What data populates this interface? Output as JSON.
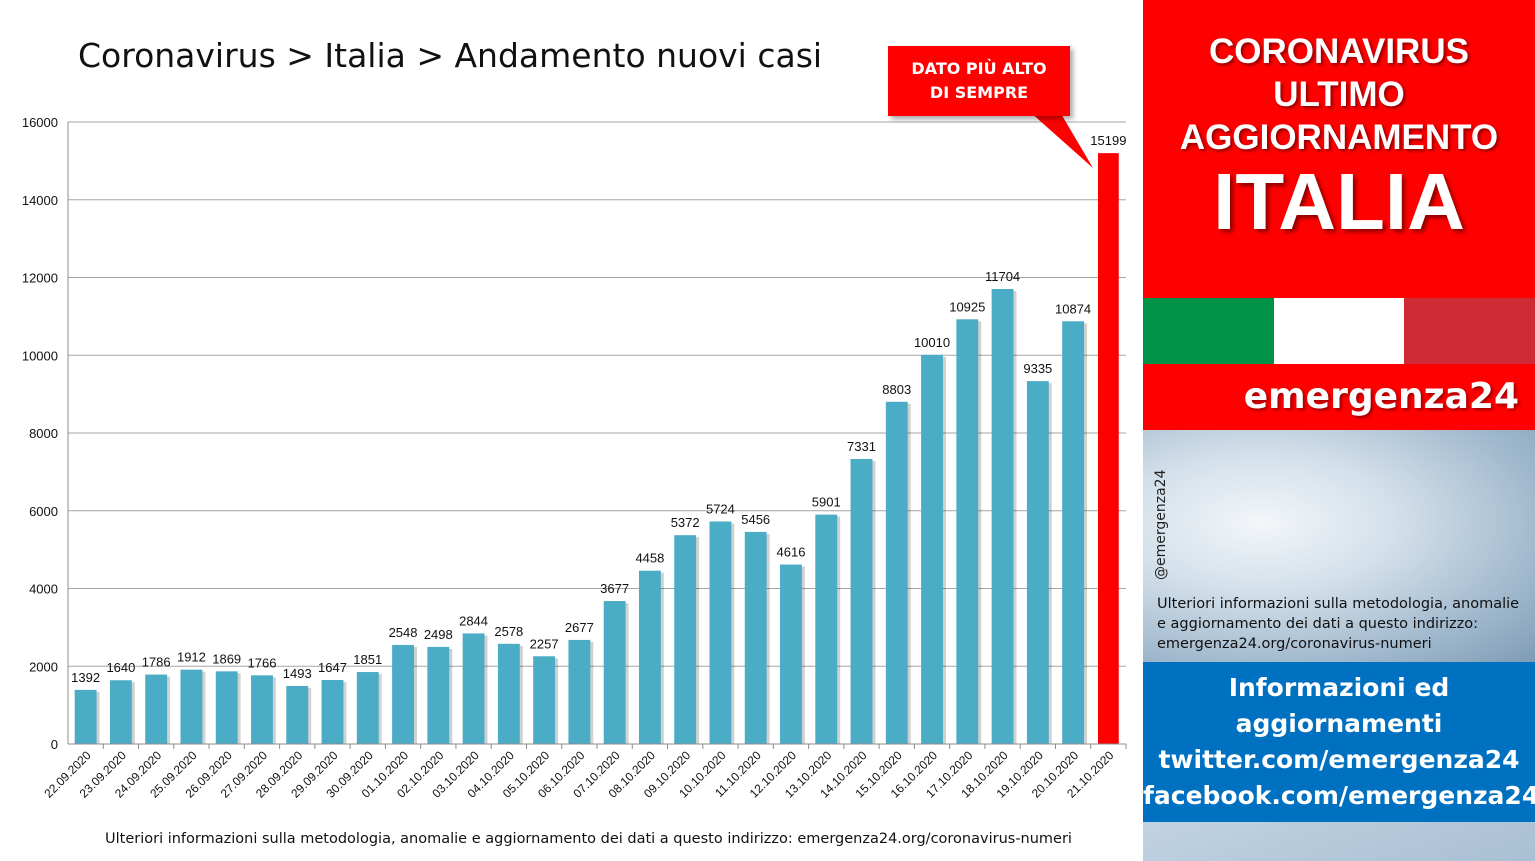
{
  "title": "Coronavirus > Italia > Andamento nuovi casi",
  "callout": {
    "line1": "DATO PIÙ ALTO",
    "line2": "DI SEMPRE"
  },
  "footnote": "Ulteriori informazioni sulla metodologia, anomalie e aggiornamento dei dati a questo indirizzo: emergenza24.org/coronavirus-numeri",
  "sidebar": {
    "line1": "CORONAVIRUS",
    "line2": "ULTIMO",
    "line3": "AGGIORNAMENTO",
    "country": "ITALIA",
    "flag_colors": [
      "#009246",
      "#ffffff",
      "#ce2b37"
    ],
    "brand": "emergenza24",
    "handle": "@emergenza24",
    "info_line1": "Ulteriori informazioni sulla metodologia, anomalie",
    "info_line2": "e aggiornamento dei dati a questo indirizzo:",
    "info_line3": "emergenza24.org/coronavirus-numeri",
    "blue_line1": "Informazioni ed",
    "blue_line2": "aggiornamenti",
    "blue_line3": "twitter.com/emergenza24",
    "blue_line4": "facebook.com/emergenza24"
  },
  "chart_data": {
    "type": "bar",
    "title": "Coronavirus > Italia > Andamento nuovi casi",
    "xlabel": "",
    "ylabel": "",
    "ylim": [
      0,
      16000
    ],
    "yticks": [
      0,
      2000,
      4000,
      6000,
      8000,
      10000,
      12000,
      14000,
      16000
    ],
    "grid": true,
    "bar_color": "#4bacc6",
    "highlight_color": "#ff0000",
    "highlight_index": 29,
    "categories": [
      "22.09.2020",
      "23.09.2020",
      "24.09.2020",
      "25.09.2020",
      "26.09.2020",
      "27.09.2020",
      "28.09.2020",
      "29.09.2020",
      "30.09.2020",
      "01.10.2020",
      "02.10.2020",
      "03.10.2020",
      "04.10.2020",
      "05.10.2020",
      "06.10.2020",
      "07.10.2020",
      "08.10.2020",
      "09.10.2020",
      "10.10.2020",
      "11.10.2020",
      "12.10.2020",
      "13.10.2020",
      "14.10.2020",
      "15.10.2020",
      "16.10.2020",
      "17.10.2020",
      "18.10.2020",
      "19.10.2020",
      "20.10.2020",
      "21.10.2020"
    ],
    "values": [
      1392,
      1640,
      1786,
      1912,
      1869,
      1766,
      1493,
      1647,
      1851,
      2548,
      2498,
      2844,
      2578,
      2257,
      2677,
      3677,
      4458,
      5372,
      5724,
      5456,
      4616,
      5901,
      7331,
      8803,
      10010,
      10925,
      11704,
      9335,
      10874,
      15199
    ]
  }
}
